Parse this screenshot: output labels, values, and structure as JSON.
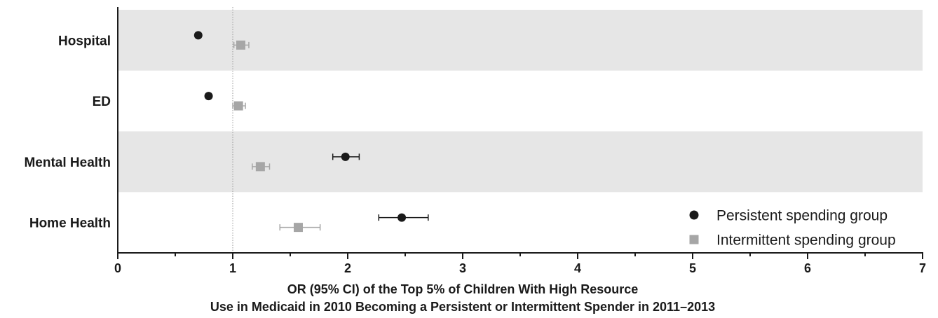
{
  "chart_data": {
    "type": "scatter",
    "chart_subtype": "forest-plot",
    "categories": [
      "Hospital",
      "ED",
      "Mental Health",
      "Home Health"
    ],
    "series": [
      {
        "name": "Persistent spending group",
        "marker": "circle",
        "color": "#1a1a1a",
        "values": [
          0.7,
          0.79,
          1.98,
          2.47
        ],
        "ci_low": [
          0.68,
          0.77,
          1.87,
          2.27
        ],
        "ci_high": [
          0.72,
          0.81,
          2.1,
          2.7
        ]
      },
      {
        "name": "Intermittent spending group",
        "marker": "square",
        "color": "#a6a6a6",
        "values": [
          1.07,
          1.05,
          1.24,
          1.57
        ],
        "ci_low": [
          1.01,
          1.0,
          1.17,
          1.41
        ],
        "ci_high": [
          1.14,
          1.11,
          1.32,
          1.76
        ]
      }
    ],
    "xlim": [
      0,
      7
    ],
    "x_ticks": [
      "0",
      "1",
      "2",
      "3",
      "4",
      "5",
      "6",
      "7"
    ],
    "reference_line": 1,
    "xlabel_line1": "OR (95% CI) of the Top 5% of Children With High Resource",
    "xlabel_line2": "Use in Medicaid in 2010 Becoming a Persistent or Intermittent Spender in 2011–2013",
    "legend_position": "bottom-right",
    "band_color": "#e6e6e6",
    "grid": false
  }
}
